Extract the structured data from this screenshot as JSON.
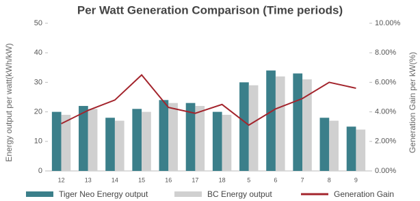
{
  "chart_data": {
    "type": "bar",
    "title": "Per Watt Generation Comparison (Time periods)",
    "y_label": "Energy output per watt(kWh/kW)",
    "y2_label": "Generation Gain per kW(%)",
    "categories": [
      "12",
      "13",
      "14",
      "15",
      "16",
      "17",
      "18",
      "5",
      "6",
      "7",
      "8",
      "9"
    ],
    "series": [
      {
        "name": "Tiger Neo Energy output",
        "color": "#3b7f8a",
        "values": [
          20,
          22,
          18,
          21,
          24,
          23,
          20,
          30,
          34,
          33,
          18,
          15
        ]
      },
      {
        "name": "BC Energy output",
        "color": "#d0d0d0",
        "values": [
          19,
          21,
          17,
          20,
          23,
          22,
          19,
          29,
          32,
          31,
          17,
          14
        ]
      },
      {
        "name": "Generation Gain",
        "color": "#a3242c",
        "type": "line",
        "axis": "y2",
        "values": [
          3.2,
          4.1,
          4.8,
          6.5,
          4.3,
          3.9,
          4.5,
          3.1,
          4.2,
          4.9,
          6.0,
          5.6
        ]
      }
    ],
    "ylim": [
      0,
      50
    ],
    "yticks": [
      0,
      10,
      20,
      30,
      40,
      50
    ],
    "y2lim": [
      0,
      10
    ],
    "y2ticks": [
      {
        "value": 0,
        "label": "0.00%"
      },
      {
        "value": 2,
        "label": "2.00%"
      },
      {
        "value": 4,
        "label": "4.00%"
      },
      {
        "value": 6,
        "label": "6.00%"
      },
      {
        "value": 8,
        "label": "8.00%"
      },
      {
        "value": 10,
        "label": "10.00%"
      }
    ],
    "grid": false
  }
}
